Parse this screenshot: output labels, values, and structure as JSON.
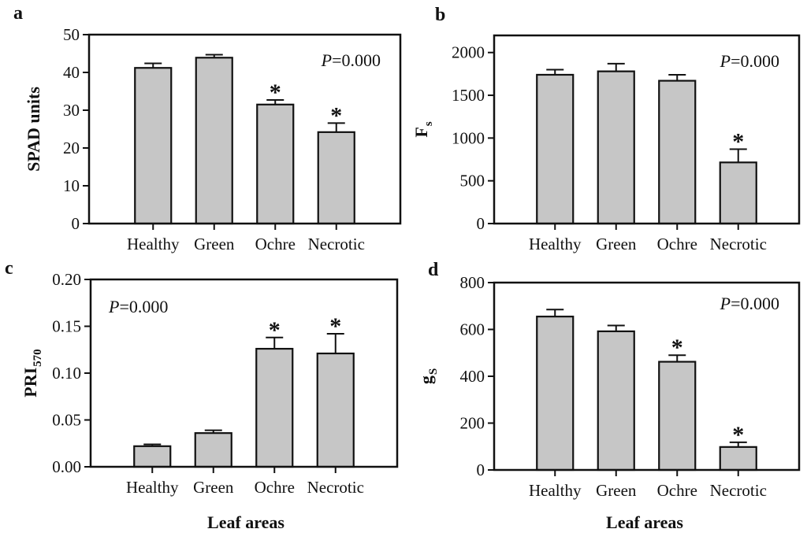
{
  "figure": {
    "x_axis_label": "Leaf areas",
    "significance_marker": "*",
    "colors": {
      "bar_fill": "#c6c6c6",
      "axis": "#111111",
      "background": "#ffffff"
    }
  },
  "chart_data": [
    {
      "type": "bar",
      "panel_label": "a",
      "ylabel": {
        "text": "SPAD units",
        "sub": ""
      },
      "categories": [
        "Healthy",
        "Green",
        "Ochre",
        "Necrotic"
      ],
      "values": [
        41.2,
        43.9,
        31.5,
        24.2
      ],
      "errors": [
        1.2,
        0.8,
        1.2,
        2.4
      ],
      "significant": [
        false,
        false,
        true,
        true
      ],
      "annotation": "P=0.000",
      "annotation_position": "top-right",
      "ylim": [
        0,
        50
      ],
      "yticks": [
        0,
        10,
        20,
        30,
        40,
        50
      ],
      "ytick_labels": [
        "0",
        "10",
        "20",
        "30",
        "40",
        "50"
      ],
      "grid": false,
      "legend": "none"
    },
    {
      "type": "bar",
      "panel_label": "b",
      "ylabel": {
        "text": "F",
        "sub": "s"
      },
      "categories": [
        "Healthy",
        "Green",
        "Ochre",
        "Necrotic"
      ],
      "values": [
        1740,
        1780,
        1670,
        715
      ],
      "errors": [
        60,
        90,
        70,
        155
      ],
      "significant": [
        false,
        false,
        false,
        true
      ],
      "annotation": "P=0.000",
      "annotation_position": "top-right",
      "ylim": [
        0,
        2200
      ],
      "yticks": [
        0,
        500,
        1000,
        1500,
        2000
      ],
      "ytick_labels": [
        "0",
        "500",
        "1000",
        "1500",
        "2000"
      ],
      "grid": false,
      "legend": "none"
    },
    {
      "type": "bar",
      "panel_label": "c",
      "ylabel": {
        "text": "PRI",
        "sub": "570"
      },
      "categories": [
        "Healthy",
        "Green",
        "Ochre",
        "Necrotic"
      ],
      "values": [
        0.022,
        0.036,
        0.126,
        0.121
      ],
      "errors": [
        0.002,
        0.003,
        0.012,
        0.021
      ],
      "significant": [
        false,
        false,
        true,
        true
      ],
      "annotation": "P=0.000",
      "annotation_position": "top-left",
      "ylim": [
        0,
        0.2
      ],
      "yticks": [
        0,
        0.05,
        0.1,
        0.15,
        0.2
      ],
      "ytick_labels": [
        "0.00",
        "0.05",
        "0.10",
        "0.15",
        "0.20"
      ],
      "xlabel": "Leaf areas",
      "grid": false,
      "legend": "none"
    },
    {
      "type": "bar",
      "panel_label": "d",
      "ylabel": {
        "text": "g",
        "sub": "S"
      },
      "categories": [
        "Healthy",
        "Green",
        "Ochre",
        "Necrotic"
      ],
      "values": [
        655,
        592,
        462,
        98
      ],
      "errors": [
        30,
        25,
        28,
        20
      ],
      "significant": [
        false,
        false,
        true,
        true
      ],
      "annotation": "P=0.000",
      "annotation_position": "top-right",
      "ylim": [
        0,
        800
      ],
      "yticks": [
        0,
        200,
        400,
        600,
        800
      ],
      "ytick_labels": [
        "0",
        "200",
        "400",
        "600",
        "800"
      ],
      "xlabel": "Leaf areas",
      "grid": false,
      "legend": "none"
    }
  ]
}
